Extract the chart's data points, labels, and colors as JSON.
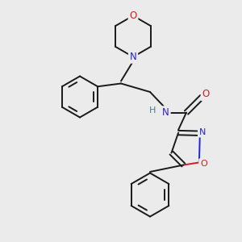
{
  "background_color": "#ebebeb",
  "bond_color": "#1a1a1a",
  "N_color": "#2424cc",
  "O_color": "#cc2020",
  "H_color": "#4a8080",
  "figsize": [
    3.0,
    3.0
  ],
  "dpi": 100,
  "lw": 1.4,
  "xlim": [
    0,
    10
  ],
  "ylim": [
    0,
    10
  ]
}
